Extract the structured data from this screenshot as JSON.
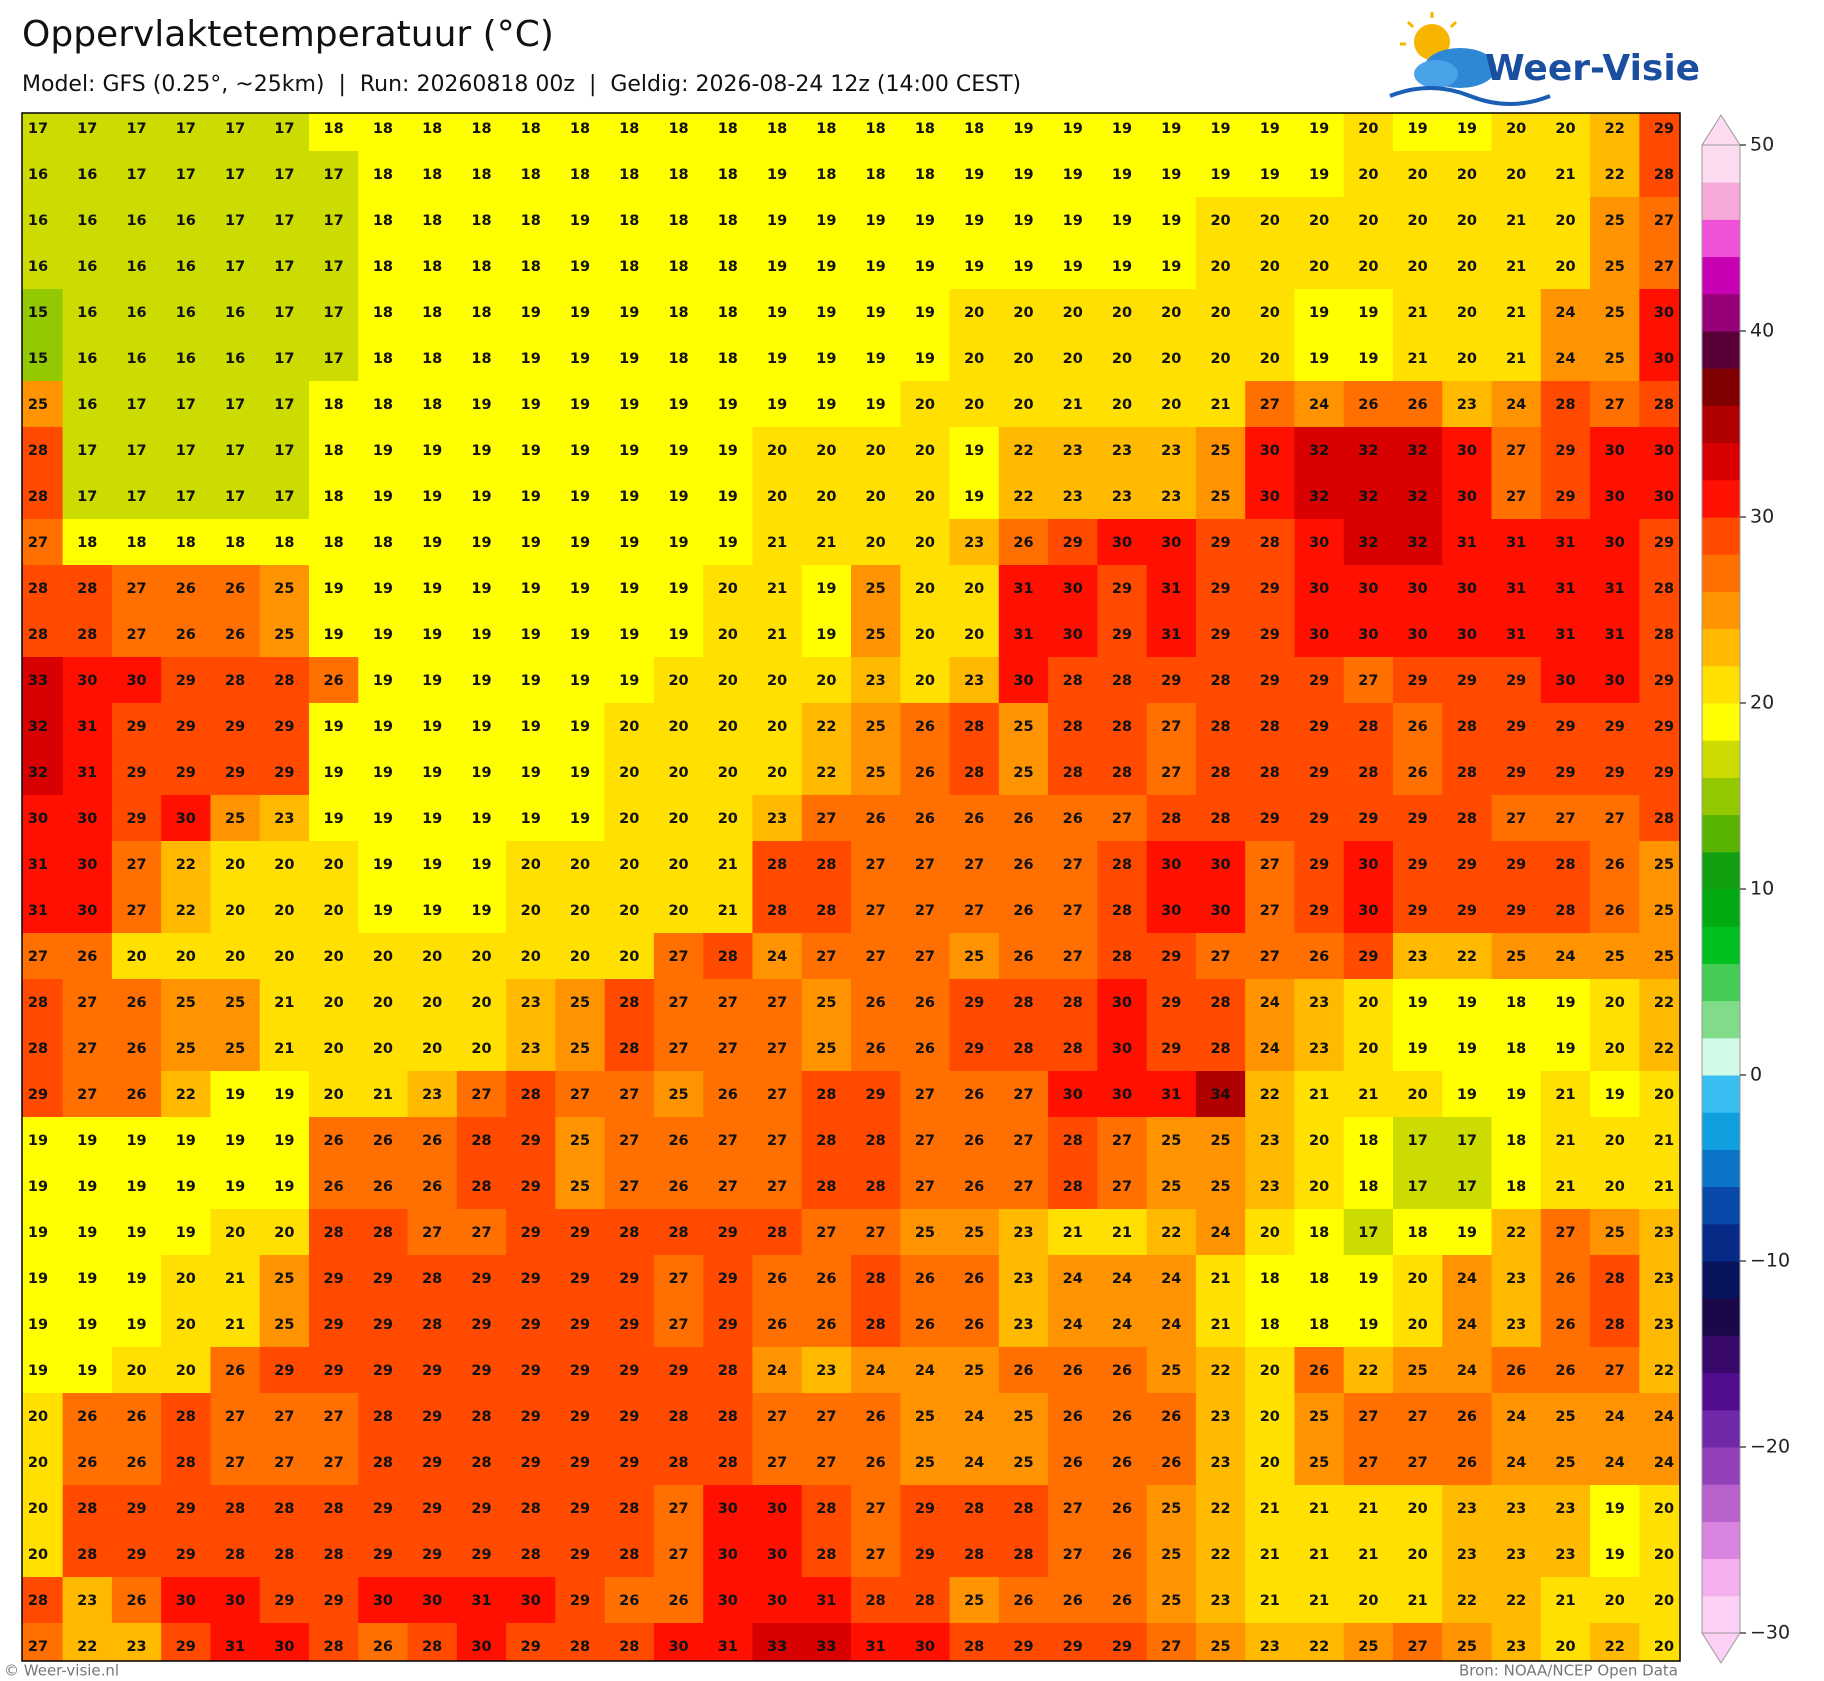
{
  "header": {
    "title": "Oppervlaktetemperatuur (°C)",
    "subtitle": "Model: GFS (0.25°, ~25km)  |  Run: 20260818 00z  |  Geldig: 2026-08-24 12z (14:00 CEST)",
    "logo": "Weer-Visie"
  },
  "footer": {
    "left": "© Weer-visie.nl",
    "right": "Bron: NOAA/NCEP Open Data"
  },
  "map": {
    "rows": [
      [
        17,
        17,
        17,
        17,
        17,
        17,
        18,
        18,
        18,
        18,
        18,
        18,
        18,
        18,
        18,
        18,
        18,
        18,
        18,
        18,
        19,
        19,
        19,
        19,
        19,
        19,
        19,
        20,
        19,
        19,
        20,
        20,
        22,
        29
      ],
      [
        16,
        16,
        17,
        17,
        17,
        17,
        17,
        18,
        18,
        18,
        18,
        18,
        18,
        18,
        18,
        19,
        18,
        18,
        18,
        19,
        19,
        19,
        19,
        19,
        19,
        19,
        19,
        20,
        20,
        20,
        20,
        21,
        22,
        28
      ],
      [
        16,
        16,
        16,
        16,
        17,
        17,
        17,
        18,
        18,
        18,
        18,
        19,
        18,
        18,
        18,
        19,
        19,
        19,
        19,
        19,
        19,
        19,
        19,
        19,
        20,
        20,
        20,
        20,
        20,
        20,
        21,
        20,
        25,
        27
      ],
      [
        16,
        16,
        16,
        16,
        17,
        17,
        17,
        18,
        18,
        18,
        18,
        19,
        18,
        18,
        18,
        19,
        19,
        19,
        19,
        19,
        19,
        19,
        19,
        19,
        20,
        20,
        20,
        20,
        20,
        20,
        21,
        20,
        25,
        27
      ],
      [
        15,
        16,
        16,
        16,
        16,
        17,
        17,
        18,
        18,
        18,
        19,
        19,
        19,
        18,
        18,
        19,
        19,
        19,
        19,
        20,
        20,
        20,
        20,
        20,
        20,
        20,
        19,
        19,
        21,
        20,
        21,
        24,
        25,
        30
      ],
      [
        15,
        16,
        16,
        16,
        16,
        17,
        17,
        18,
        18,
        18,
        19,
        19,
        19,
        18,
        18,
        19,
        19,
        19,
        19,
        20,
        20,
        20,
        20,
        20,
        20,
        20,
        19,
        19,
        21,
        20,
        21,
        24,
        25,
        30
      ],
      [
        25,
        16,
        17,
        17,
        17,
        17,
        18,
        18,
        18,
        19,
        19,
        19,
        19,
        19,
        19,
        19,
        19,
        19,
        20,
        20,
        20,
        21,
        20,
        20,
        21,
        27,
        24,
        26,
        26,
        23,
        24,
        28,
        27,
        28
      ],
      [
        28,
        17,
        17,
        17,
        17,
        17,
        18,
        19,
        19,
        19,
        19,
        19,
        19,
        19,
        19,
        20,
        20,
        20,
        20,
        19,
        22,
        23,
        23,
        23,
        25,
        30,
        32,
        32,
        32,
        30,
        27,
        29,
        30,
        30
      ],
      [
        28,
        17,
        17,
        17,
        17,
        17,
        18,
        19,
        19,
        19,
        19,
        19,
        19,
        19,
        19,
        20,
        20,
        20,
        20,
        19,
        22,
        23,
        23,
        23,
        25,
        30,
        32,
        32,
        32,
        30,
        27,
        29,
        30,
        30
      ],
      [
        27,
        18,
        18,
        18,
        18,
        18,
        18,
        18,
        19,
        19,
        19,
        19,
        19,
        19,
        19,
        21,
        21,
        20,
        20,
        23,
        26,
        29,
        30,
        30,
        29,
        28,
        30,
        32,
        32,
        31,
        31,
        31,
        30,
        29
      ],
      [
        28,
        28,
        27,
        26,
        26,
        25,
        19,
        19,
        19,
        19,
        19,
        19,
        19,
        19,
        20,
        21,
        19,
        25,
        20,
        20,
        31,
        30,
        29,
        31,
        29,
        29,
        30,
        30,
        30,
        30,
        31,
        31,
        31,
        28
      ],
      [
        28,
        28,
        27,
        26,
        26,
        25,
        19,
        19,
        19,
        19,
        19,
        19,
        19,
        19,
        20,
        21,
        19,
        25,
        20,
        20,
        31,
        30,
        29,
        31,
        29,
        29,
        30,
        30,
        30,
        30,
        31,
        31,
        31,
        28
      ],
      [
        33,
        30,
        30,
        29,
        28,
        28,
        26,
        19,
        19,
        19,
        19,
        19,
        19,
        20,
        20,
        20,
        20,
        23,
        20,
        23,
        30,
        28,
        28,
        29,
        28,
        29,
        29,
        27,
        29,
        29,
        29,
        30,
        30,
        29
      ],
      [
        32,
        31,
        29,
        29,
        29,
        29,
        19,
        19,
        19,
        19,
        19,
        19,
        20,
        20,
        20,
        20,
        22,
        25,
        26,
        28,
        25,
        28,
        28,
        27,
        28,
        28,
        29,
        28,
        26,
        28,
        29,
        29,
        29,
        29
      ],
      [
        32,
        31,
        29,
        29,
        29,
        29,
        19,
        19,
        19,
        19,
        19,
        19,
        20,
        20,
        20,
        20,
        22,
        25,
        26,
        28,
        25,
        28,
        28,
        27,
        28,
        28,
        29,
        28,
        26,
        28,
        29,
        29,
        29,
        29
      ],
      [
        30,
        30,
        29,
        30,
        25,
        23,
        19,
        19,
        19,
        19,
        19,
        19,
        20,
        20,
        20,
        23,
        27,
        26,
        26,
        26,
        26,
        26,
        27,
        28,
        28,
        29,
        29,
        29,
        29,
        28,
        27,
        27,
        27,
        28
      ],
      [
        31,
        30,
        27,
        22,
        20,
        20,
        20,
        19,
        19,
        19,
        20,
        20,
        20,
        20,
        21,
        28,
        28,
        27,
        27,
        27,
        26,
        27,
        28,
        30,
        30,
        27,
        29,
        30,
        29,
        29,
        29,
        28,
        26,
        25
      ],
      [
        31,
        30,
        27,
        22,
        20,
        20,
        20,
        19,
        19,
        19,
        20,
        20,
        20,
        20,
        21,
        28,
        28,
        27,
        27,
        27,
        26,
        27,
        28,
        30,
        30,
        27,
        29,
        30,
        29,
        29,
        29,
        28,
        26,
        25
      ],
      [
        27,
        26,
        20,
        20,
        20,
        20,
        20,
        20,
        20,
        20,
        20,
        20,
        20,
        27,
        28,
        24,
        27,
        27,
        27,
        25,
        26,
        27,
        28,
        29,
        27,
        27,
        26,
        29,
        23,
        22,
        25,
        24,
        25,
        25
      ],
      [
        28,
        27,
        26,
        25,
        25,
        21,
        20,
        20,
        20,
        20,
        23,
        25,
        28,
        27,
        27,
        27,
        25,
        26,
        26,
        29,
        28,
        28,
        30,
        29,
        28,
        24,
        23,
        20,
        19,
        19,
        18,
        19,
        20,
        22
      ],
      [
        28,
        27,
        26,
        25,
        25,
        21,
        20,
        20,
        20,
        20,
        23,
        25,
        28,
        27,
        27,
        27,
        25,
        26,
        26,
        29,
        28,
        28,
        30,
        29,
        28,
        24,
        23,
        20,
        19,
        19,
        18,
        19,
        20,
        22
      ],
      [
        29,
        27,
        26,
        22,
        19,
        19,
        20,
        21,
        23,
        27,
        28,
        27,
        27,
        25,
        26,
        27,
        28,
        29,
        27,
        26,
        27,
        30,
        30,
        31,
        34,
        22,
        21,
        21,
        20,
        19,
        19,
        21,
        19,
        20
      ],
      [
        19,
        19,
        19,
        19,
        19,
        19,
        26,
        26,
        26,
        28,
        29,
        25,
        27,
        26,
        27,
        27,
        28,
        28,
        27,
        26,
        27,
        28,
        27,
        25,
        25,
        23,
        20,
        18,
        17,
        17,
        18,
        21,
        20,
        21
      ],
      [
        19,
        19,
        19,
        19,
        19,
        19,
        26,
        26,
        26,
        28,
        29,
        25,
        27,
        26,
        27,
        27,
        28,
        28,
        27,
        26,
        27,
        28,
        27,
        25,
        25,
        23,
        20,
        18,
        17,
        17,
        18,
        21,
        20,
        21
      ],
      [
        19,
        19,
        19,
        19,
        20,
        20,
        28,
        28,
        27,
        27,
        29,
        29,
        28,
        28,
        29,
        28,
        27,
        27,
        25,
        25,
        23,
        21,
        21,
        22,
        24,
        20,
        18,
        17,
        18,
        19,
        22,
        27,
        25,
        23
      ],
      [
        19,
        19,
        19,
        20,
        21,
        25,
        29,
        29,
        28,
        29,
        29,
        29,
        29,
        27,
        29,
        26,
        26,
        28,
        26,
        26,
        23,
        24,
        24,
        24,
        21,
        18,
        18,
        19,
        20,
        24,
        23,
        26,
        28,
        23
      ],
      [
        19,
        19,
        19,
        20,
        21,
        25,
        29,
        29,
        28,
        29,
        29,
        29,
        29,
        27,
        29,
        26,
        26,
        28,
        26,
        26,
        23,
        24,
        24,
        24,
        21,
        18,
        18,
        19,
        20,
        24,
        23,
        26,
        28,
        23
      ],
      [
        19,
        19,
        20,
        20,
        26,
        29,
        29,
        29,
        29,
        29,
        29,
        29,
        29,
        29,
        28,
        24,
        23,
        24,
        24,
        25,
        26,
        26,
        26,
        25,
        22,
        20,
        26,
        22,
        25,
        24,
        26,
        26,
        27,
        22
      ],
      [
        20,
        26,
        26,
        28,
        27,
        27,
        27,
        28,
        29,
        28,
        29,
        29,
        29,
        28,
        28,
        27,
        27,
        26,
        25,
        24,
        25,
        26,
        26,
        26,
        23,
        20,
        25,
        27,
        27,
        26,
        24,
        25,
        24,
        24
      ],
      [
        20,
        26,
        26,
        28,
        27,
        27,
        27,
        28,
        29,
        28,
        29,
        29,
        29,
        28,
        28,
        27,
        27,
        26,
        25,
        24,
        25,
        26,
        26,
        26,
        23,
        20,
        25,
        27,
        27,
        26,
        24,
        25,
        24,
        24
      ],
      [
        20,
        28,
        29,
        29,
        28,
        28,
        28,
        29,
        29,
        29,
        28,
        29,
        28,
        27,
        30,
        30,
        28,
        27,
        29,
        28,
        28,
        27,
        26,
        25,
        22,
        21,
        21,
        21,
        20,
        23,
        23,
        23,
        19,
        20
      ],
      [
        20,
        28,
        29,
        29,
        28,
        28,
        28,
        29,
        29,
        29,
        28,
        29,
        28,
        27,
        30,
        30,
        28,
        27,
        29,
        28,
        28,
        27,
        26,
        25,
        22,
        21,
        21,
        21,
        20,
        23,
        23,
        23,
        19,
        20
      ],
      [
        28,
        23,
        26,
        30,
        30,
        29,
        29,
        30,
        30,
        31,
        30,
        29,
        26,
        26,
        30,
        30,
        31,
        28,
        28,
        25,
        26,
        26,
        26,
        25,
        23,
        21,
        21,
        20,
        21,
        22,
        22,
        21,
        20,
        20
      ],
      [
        27,
        22,
        23,
        29,
        31,
        30,
        28,
        26,
        28,
        30,
        29,
        28,
        28,
        30,
        31,
        33,
        33,
        31,
        30,
        28,
        29,
        29,
        29,
        27,
        25,
        23,
        22,
        25,
        27,
        25,
        23,
        20,
        22,
        20
      ]
    ]
  },
  "colorbar": {
    "lim": [
      -30,
      50
    ],
    "ticks": [
      50,
      40,
      30,
      20,
      10,
      0,
      {
        "value": -10,
        "label": "−10"
      },
      {
        "value": -20,
        "label": "−20"
      },
      {
        "value": -30,
        "label": "−30"
      }
    ],
    "colors": [
      "#fcd0f4",
      "#f4b0ee",
      "#d884e0",
      "#b860cc",
      "#9240b8",
      "#6e28a8",
      "#520c90",
      "#38086a",
      "#1a0848",
      "#08145e",
      "#062a86",
      "#0848a8",
      "#0a74c8",
      "#10a0e0",
      "#38bef0",
      "#d2fae8",
      "#80dc88",
      "#44cc55",
      "#00c020",
      "#00aa10",
      "#10a010",
      "#58b400",
      "#94c800",
      "#cddc00",
      "#ffff00",
      "#ffe000",
      "#ffba00",
      "#ff9400",
      "#ff7000",
      "#ff4a00",
      "#ff1000",
      "#d80000",
      "#b00000",
      "#800000",
      "#5a0038",
      "#960078",
      "#c800b4",
      "#ee50d8",
      "#f6a8d8",
      "#fcdaf0"
    ]
  }
}
